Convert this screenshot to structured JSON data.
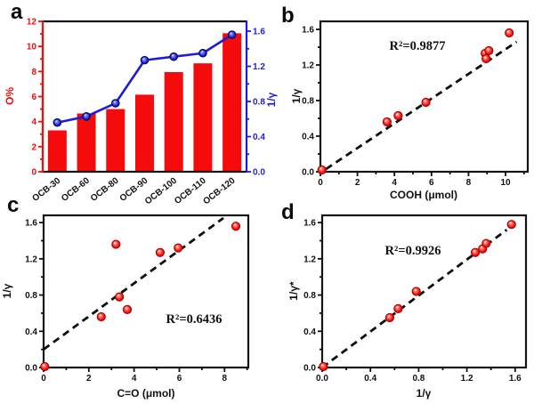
{
  "figure": {
    "background": "#ffffff",
    "panels": [
      {
        "letter": "a"
      },
      {
        "letter": "b"
      },
      {
        "letter": "c"
      },
      {
        "letter": "d"
      }
    ]
  },
  "colors": {
    "bar_red": "#f50b0b",
    "line_blue": "#1d1dd8",
    "marker_red_edge": "#a80000",
    "marker_blue_edge": "#05055f",
    "axis_black": "#141414",
    "dash_black": "#0d0d0d",
    "text_black": "#111111"
  },
  "chart_data": [
    {
      "id": "a",
      "type": "bar+line",
      "categories": [
        "OCB-30",
        "OCB-60",
        "OCB-80",
        "OCB-90",
        "OCB-100",
        "OCB-110",
        "OCB-120"
      ],
      "series": [
        {
          "name": "O%",
          "type": "bar",
          "axis": "left",
          "color": "#f50b0b",
          "values": [
            3.3,
            4.65,
            5.0,
            6.15,
            7.95,
            8.65,
            11.05
          ]
        },
        {
          "name": "1/γ",
          "type": "line",
          "axis": "right",
          "color": "#1d1dd8",
          "values": [
            0.56,
            0.63,
            0.78,
            1.27,
            1.31,
            1.35,
            1.56
          ]
        }
      ],
      "left_axis": {
        "label": "O%",
        "color": "#f50b0b",
        "min": 0,
        "max": 12,
        "tick_labels": [
          "0",
          "2",
          "4",
          "6",
          "8",
          "10",
          "12"
        ]
      },
      "right_axis": {
        "label": "1/γ",
        "color": "#1d1dd8",
        "min": 0,
        "max": 1.712,
        "tick_labels": [
          "0.0",
          "0.4",
          "0.8",
          "1.2",
          "1.6"
        ]
      },
      "grid": false,
      "legend": "none"
    },
    {
      "id": "b",
      "type": "scatter",
      "annotation": "R²=0.9877",
      "xlabel": "COOH (μmol)",
      "ylabel": "1/γ",
      "xlim": [
        0,
        11.2
      ],
      "ylim": [
        0,
        1.69
      ],
      "xtick_labels": [
        "0",
        "2",
        "4",
        "6",
        "8",
        "10"
      ],
      "ytick_labels": [
        "0.0",
        "0.4",
        "0.8",
        "1.2",
        "1.6"
      ],
      "points": [
        [
          0.08,
          0.02
        ],
        [
          3.6,
          0.56
        ],
        [
          4.2,
          0.63
        ],
        [
          5.7,
          0.78
        ],
        [
          8.9,
          1.33
        ],
        [
          8.95,
          1.27
        ],
        [
          9.1,
          1.36
        ],
        [
          10.2,
          1.56
        ]
      ],
      "trend": [
        [
          0.3,
          0.03
        ],
        [
          10.6,
          1.46
        ]
      ],
      "trend_style": "dashed",
      "grid": false
    },
    {
      "id": "c",
      "type": "scatter",
      "annotation": "R²=0.6436",
      "xlabel": "C=O (μmol)",
      "ylabel": "1/γ",
      "xlim": [
        0,
        9.05
      ],
      "ylim": [
        0,
        1.68
      ],
      "xtick_labels": [
        "0",
        "2",
        "4",
        "6",
        "8"
      ],
      "ytick_labels": [
        "0.0",
        "0.4",
        "0.8",
        "1.2",
        "1.6"
      ],
      "points": [
        [
          0.05,
          0.01
        ],
        [
          2.55,
          0.56
        ],
        [
          3.2,
          1.36
        ],
        [
          3.35,
          0.78
        ],
        [
          3.7,
          0.64
        ],
        [
          5.15,
          1.27
        ],
        [
          5.95,
          1.32
        ],
        [
          8.5,
          1.56
        ]
      ],
      "trend": [
        [
          0.0,
          0.2
        ],
        [
          7.95,
          1.65
        ]
      ],
      "trend_style": "dashed",
      "grid": false
    },
    {
      "id": "d",
      "type": "scatter",
      "annotation": "R²=0.9926",
      "xlabel": "1/γ",
      "ylabel": "1/γ*",
      "xlim": [
        0,
        1.69
      ],
      "ylim": [
        0,
        1.68
      ],
      "xtick_labels": [
        "0.0",
        "0.4",
        "0.8",
        "1.2",
        "1.6"
      ],
      "ytick_labels": [
        "0.0",
        "0.4",
        "0.8",
        "1.2",
        "1.6"
      ],
      "points": [
        [
          0.01,
          0.01
        ],
        [
          0.56,
          0.55
        ],
        [
          0.63,
          0.65
        ],
        [
          0.78,
          0.84
        ],
        [
          1.27,
          1.27
        ],
        [
          1.33,
          1.31
        ],
        [
          1.36,
          1.37
        ],
        [
          1.57,
          1.58
        ]
      ],
      "trend": [
        [
          0.0,
          0.0
        ],
        [
          1.53,
          1.52
        ]
      ],
      "trend_style": "dashed",
      "grid": false
    }
  ]
}
